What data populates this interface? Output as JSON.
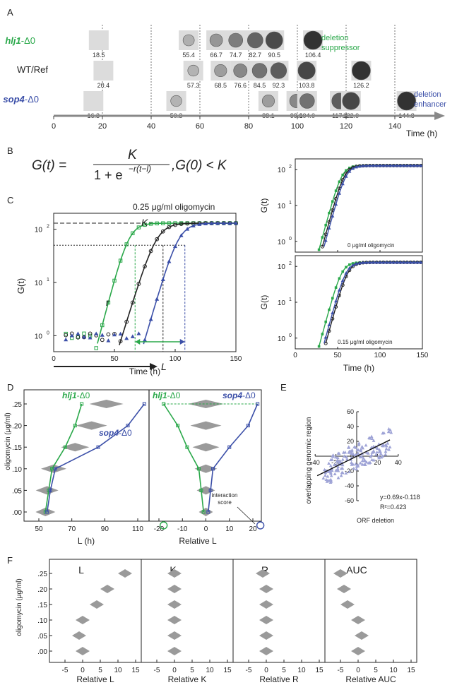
{
  "panel_letters": {
    "a": "A",
    "b": "B",
    "c": "C",
    "d": "D",
    "e": "E",
    "f": "F"
  },
  "colors": {
    "green": "#2aa84a",
    "black": "#222222",
    "blue": "#3b4fa8",
    "gray": "#9a9a9a",
    "lavender": "#9ea3d6"
  },
  "panel_a": {
    "rows": [
      {
        "label_main": "hlj1",
        "label_suffix": "-Δ0",
        "color": "#2aa84a",
        "times": [
          "18.5",
          "55.4",
          "66.7",
          "74.7",
          "82.7",
          "90.5",
          "106.4"
        ],
        "annotation_lines": [
          "deletion",
          "suppressor"
        ]
      },
      {
        "label_main": "WT/Ref",
        "label_suffix": "",
        "color": "#222222",
        "times": [
          "20.4",
          "57.3",
          "68.5",
          "76.6",
          "84.5",
          "92.3",
          "103.8",
          "126.2"
        ],
        "annotation_lines": []
      },
      {
        "label_main": "sop4",
        "label_suffix": "-Δ0",
        "color": "#3b4fa8",
        "times": [
          "16.3",
          "50.3",
          "88.1",
          "99.6",
          "104.0",
          "117.4",
          "122.0",
          "144.8"
        ],
        "annotation_lines": [
          "deletion",
          "enhancer"
        ]
      }
    ],
    "axis_ticks": [
      "0",
      "20",
      "40",
      "60",
      "80",
      "100",
      "120",
      "140"
    ],
    "axis_label": "Time (h)"
  },
  "panel_b": {
    "lhs": "G(t) =",
    "numerator": "K",
    "denominator_base": "1 + e",
    "exponent": "−r(t−l)",
    "condition": ",G(0) < K"
  },
  "panel_c": {
    "title": "0.25 μg/ml oligomycin",
    "ylabel": "G(t)",
    "xlabel": "Time (h)",
    "x_ticks": [
      "0",
      "50",
      "100",
      "150"
    ],
    "y_ticks": [
      "10",
      "10",
      "10"
    ],
    "y_exps": [
      "0",
      "1",
      "2"
    ],
    "k_label": "K",
    "r_label": "r",
    "l_label": "L"
  },
  "panel_c_right": {
    "top_label": "0 μg/ml oligomycin",
    "bottom_label": "0.15 μg/ml oligomycin",
    "ylabel": "G(t)",
    "xlabel": "Time (h)",
    "x_ticks": [
      "0",
      "50",
      "100",
      "150"
    ],
    "y_ticks": [
      "10",
      "10",
      "10"
    ],
    "y_exps": [
      "0",
      "1",
      "2"
    ]
  },
  "panel_d": {
    "ylabel": "oligomycin (μg/ml)",
    "y_ticks": [
      ".25",
      ".20",
      ".15",
      ".10",
      ".05",
      ".00"
    ],
    "left_x_ticks": [
      "50",
      "70",
      "90",
      "110"
    ],
    "left_xlabel": "L (h)",
    "right_x_ticks": [
      "-20",
      "-10",
      "0",
      "10",
      "20"
    ],
    "right_xlabel": "Relative L",
    "hlj1_main": "hlj1",
    "sop4_main": "sop4",
    "suffix": "-Δ0",
    "interaction_lines": [
      "interaction",
      "score"
    ]
  },
  "panel_e": {
    "ylabel": "overlapping genomic region",
    "xlabel": "ORF deletion",
    "x_ticks": [
      "-40",
      "-20",
      "0",
      "20",
      "40"
    ],
    "y_ticks": [
      "60",
      "40",
      "20",
      "0",
      "-20",
      "-40",
      "-60"
    ],
    "equation": "y=0.69x-0.118",
    "r2": "R²=0.423"
  },
  "panel_f": {
    "ylabel": "oligomycin (μg/ml)",
    "y_ticks": [
      ".25",
      ".20",
      ".15",
      ".10",
      ".05",
      ".00"
    ],
    "x_ticks": [
      "-5",
      "0",
      "5",
      "10",
      "15"
    ],
    "panels": [
      {
        "title": "L",
        "xlabel": "Relative L"
      },
      {
        "title": "K",
        "xlabel": "Relative K"
      },
      {
        "title": "R",
        "xlabel": "Relative R"
      },
      {
        "title": "AUC",
        "xlabel": "Relative AUC"
      }
    ]
  },
  "chart_data": [
    {
      "type": "line",
      "title": "0.25 μg/ml oligomycin",
      "xlabel": "Time (h)",
      "ylabel": "G(t)",
      "xlim": [
        0,
        150
      ],
      "ylim_log10": [
        -0.3,
        2.3
      ],
      "series": [
        {
          "name": "hlj1-Δ0",
          "K": 130,
          "r": 0.2,
          "l": 67
        },
        {
          "name": "WT/Ref",
          "K": 130,
          "r": 0.17,
          "l": 90
        },
        {
          "name": "sop4-Δ0",
          "K": 130,
          "r": 0.18,
          "l": 108
        }
      ]
    },
    {
      "type": "scatter",
      "title": "",
      "xlabel": "ORF deletion",
      "ylabel": "overlapping genomic region",
      "xlim": [
        -40,
        40
      ],
      "ylim": [
        -60,
        60
      ],
      "fit": {
        "slope": 0.69,
        "intercept": -0.118,
        "r2": 0.423
      }
    },
    {
      "type": "line",
      "title": "",
      "xlabel": "L (h)",
      "ylabel": "oligomycin (μg/ml)",
      "concentrations": [
        0.0,
        0.05,
        0.1,
        0.15,
        0.2,
        0.25
      ],
      "series": [
        {
          "name": "hlj1-Δ0",
          "values": [
            54,
            56,
            58,
            66,
            72,
            76
          ]
        },
        {
          "name": "sop4-Δ0",
          "values": [
            55,
            57,
            60,
            86,
            104,
            114
          ]
        },
        {
          "name": "WT/Ref",
          "values": [
            54,
            55,
            59,
            72,
            82,
            91
          ]
        }
      ]
    },
    {
      "type": "line",
      "title": "",
      "xlabel": "Relative L",
      "ylabel": "oligomycin (μg/ml)",
      "concentrations": [
        0.0,
        0.05,
        0.1,
        0.15,
        0.2,
        0.25
      ],
      "series": [
        {
          "name": "hlj1-Δ0",
          "values": [
            -1,
            -2,
            -3,
            -8,
            -12,
            -18
          ]
        },
        {
          "name": "sop4-Δ0",
          "values": [
            1,
            2,
            3,
            10,
            18,
            22
          ]
        }
      ]
    },
    {
      "type": "scatter",
      "title": "L",
      "xlabel": "Relative L",
      "ylabel": "oligomycin (μg/ml)",
      "concentrations": [
        0.25,
        0.2,
        0.15,
        0.1,
        0.05,
        0.0
      ],
      "values": [
        12,
        7,
        4,
        0,
        -1,
        0
      ]
    },
    {
      "type": "scatter",
      "title": "K",
      "xlabel": "Relative K",
      "ylabel": "oligomycin (μg/ml)",
      "concentrations": [
        0.25,
        0.2,
        0.15,
        0.1,
        0.05,
        0.0
      ],
      "values": [
        0,
        0,
        0,
        0,
        0,
        0
      ]
    },
    {
      "type": "scatter",
      "title": "R",
      "xlabel": "Relative R",
      "ylabel": "oligomycin (μg/ml)",
      "concentrations": [
        0.25,
        0.2,
        0.15,
        0.1,
        0.05,
        0.0
      ],
      "values": [
        -1,
        0,
        0,
        0,
        0,
        0
      ]
    },
    {
      "type": "scatter",
      "title": "AUC",
      "xlabel": "Relative AUC",
      "ylabel": "oligomycin (μg/ml)",
      "concentrations": [
        0.25,
        0.2,
        0.15,
        0.1,
        0.05,
        0.0
      ],
      "values": [
        -5,
        -4,
        -3,
        0,
        1,
        0
      ]
    }
  ]
}
